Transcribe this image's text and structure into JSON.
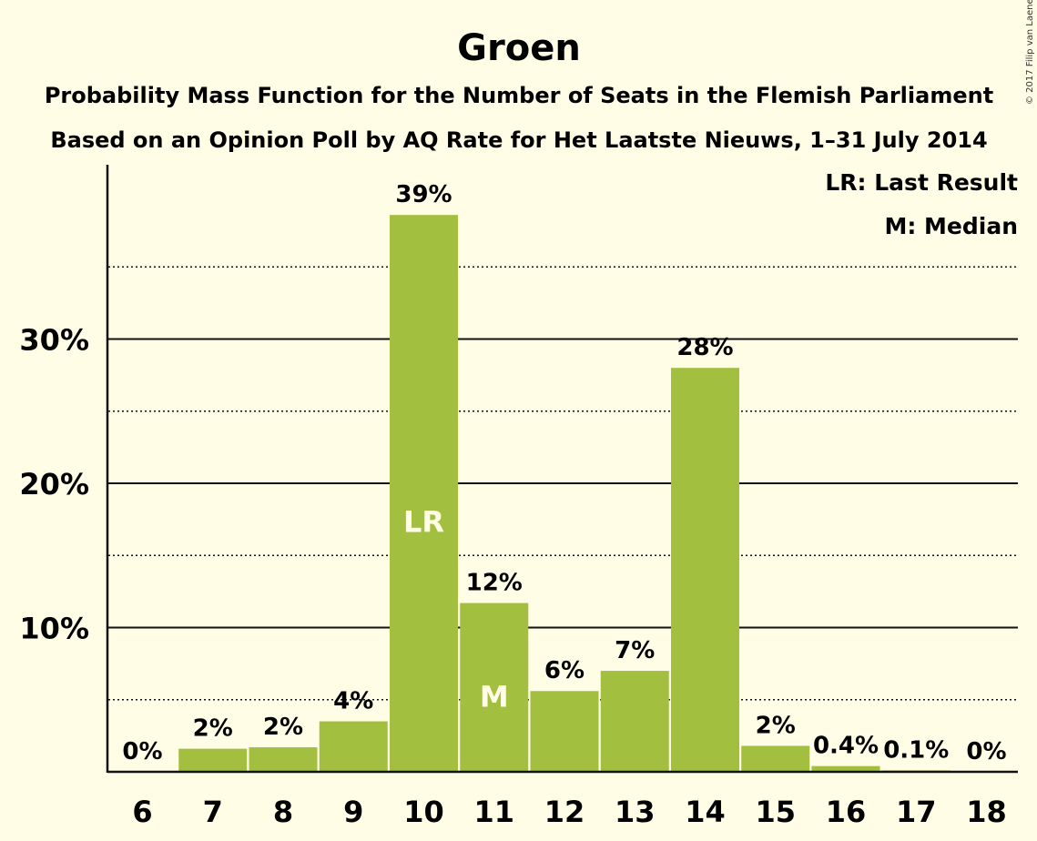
{
  "copyright": "© 2017 Filip van Laenen",
  "chart_data": {
    "type": "bar",
    "title": "Groen",
    "subtitle_lines": [
      "Probability Mass Function for the Number of Seats in the Flemish Parliament",
      "Based on an Opinion Poll by AQ Rate for Het Laatste Nieuws, 1–31 July 2014"
    ],
    "legend_lines": [
      "LR: Last Result",
      "M: Median"
    ],
    "categories": [
      "6",
      "7",
      "8",
      "9",
      "10",
      "11",
      "12",
      "13",
      "14",
      "15",
      "16",
      "17",
      "18"
    ],
    "values": [
      0,
      1.6,
      1.7,
      3.5,
      38.6,
      11.7,
      5.6,
      7.0,
      28.0,
      1.8,
      0.4,
      0.1,
      0
    ],
    "data_labels": [
      "0%",
      "2%",
      "2%",
      "4%",
      "39%",
      "12%",
      "6%",
      "7%",
      "28%",
      "2%",
      "0.4%",
      "0.1%",
      "0%"
    ],
    "bar_markers": {
      "10": "LR",
      "11": "M"
    },
    "ylim": [
      0,
      42
    ],
    "yticks_major": [
      10,
      20,
      30
    ],
    "ytick_labels": [
      "10%",
      "20%",
      "30%"
    ],
    "yticks_minor": [
      5,
      15,
      25,
      35
    ],
    "bar_color": "#A3BF3F",
    "background": "#FFFDE6",
    "grid": true
  }
}
